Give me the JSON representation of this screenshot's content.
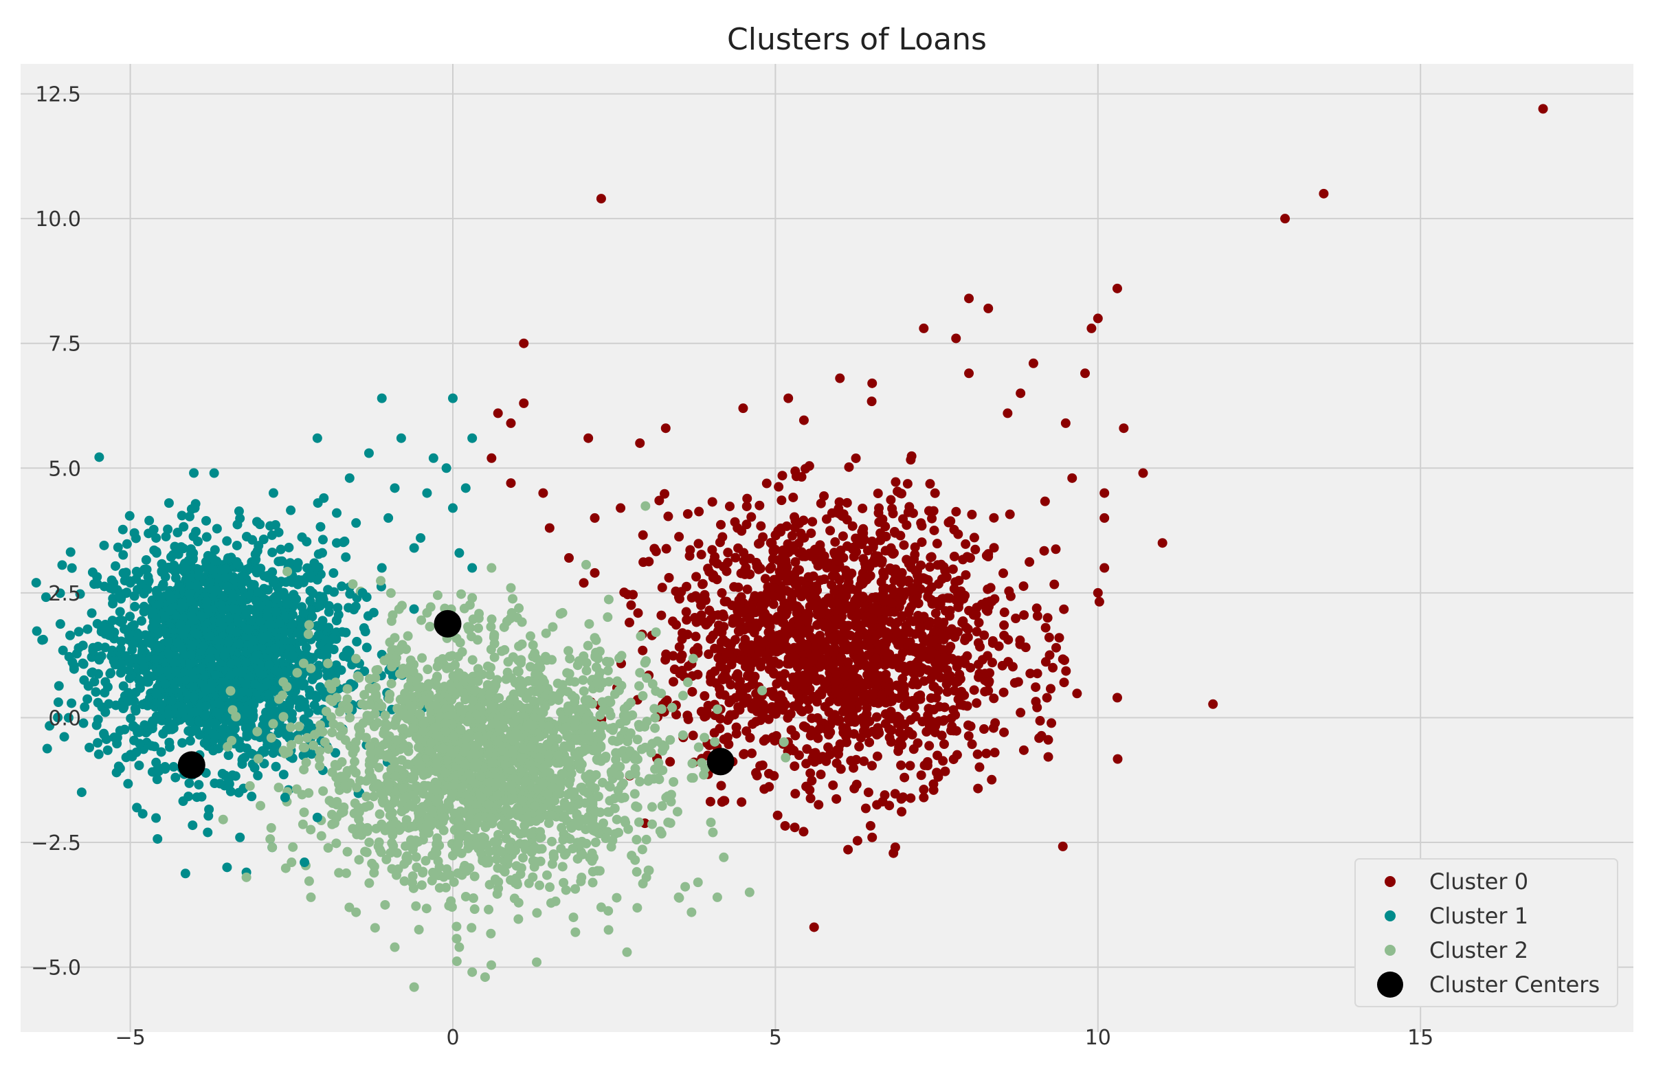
{
  "chart_data": {
    "type": "scatter",
    "title": "Clusters of Loans",
    "xlabel": "",
    "ylabel": "",
    "xlim": [
      -6.7,
      18.3
    ],
    "ylim": [
      -6.3,
      13.1
    ],
    "x_ticks": [
      -5,
      0,
      5,
      10,
      15
    ],
    "x_tick_labels": [
      "−5",
      "0",
      "5",
      "10",
      "15"
    ],
    "y_ticks": [
      -5.0,
      -2.5,
      0.0,
      2.5,
      5.0,
      7.5,
      10.0,
      12.5
    ],
    "y_tick_labels": [
      "−5.0",
      "−2.5",
      "0.0",
      "2.5",
      "5.0",
      "7.5",
      "10.0",
      "12.5"
    ],
    "grid": true,
    "legend_position": "bottom-right",
    "series": [
      {
        "name": "Cluster 0",
        "color": "#8b0000",
        "center": [
          6.0,
          1.5
        ],
        "spread": [
          1.35,
          1.35
        ],
        "points": [
          [
            16.9,
            12.2
          ],
          [
            13.5,
            10.5
          ],
          [
            12.9,
            10.0
          ],
          [
            2.3,
            10.4
          ],
          [
            10.3,
            8.6
          ],
          [
            10.0,
            8.0
          ],
          [
            9.9,
            7.8
          ],
          [
            1.1,
            7.5
          ],
          [
            8.0,
            8.4
          ],
          [
            8.3,
            8.2
          ],
          [
            7.3,
            7.8
          ],
          [
            7.8,
            7.6
          ],
          [
            10.4,
            5.8
          ],
          [
            10.7,
            4.9
          ],
          [
            11.0,
            3.5
          ],
          [
            10.1,
            3.0
          ],
          [
            10.0,
            2.5
          ],
          [
            10.3,
            0.4
          ],
          [
            8.4,
            -0.7
          ],
          [
            5.6,
            -4.2
          ],
          [
            6.5,
            -2.4
          ],
          [
            0.7,
            6.1
          ],
          [
            2.1,
            5.6
          ],
          [
            0.9,
            5.9
          ],
          [
            1.1,
            6.3
          ],
          [
            3.3,
            5.8
          ],
          [
            2.2,
            4.0
          ],
          [
            1.4,
            4.5
          ],
          [
            0.6,
            5.2
          ],
          [
            0.9,
            4.7
          ],
          [
            2.9,
            5.5
          ],
          [
            9.3,
            1.0
          ],
          [
            8.8,
            0.1
          ],
          [
            9.4,
            1.6
          ],
          [
            10.1,
            4.5
          ],
          [
            9.6,
            4.8
          ],
          [
            9.8,
            6.9
          ],
          [
            8.6,
            6.1
          ],
          [
            7.0,
            -1.2
          ],
          [
            7.5,
            -1.1
          ],
          [
            7.3,
            -1.6
          ],
          [
            5.3,
            -2.2
          ],
          [
            1.8,
            3.2
          ],
          [
            2.6,
            4.2
          ],
          [
            1.5,
            3.8
          ],
          [
            2.2,
            2.9
          ],
          [
            9.0,
            7.1
          ],
          [
            8.8,
            6.5
          ],
          [
            8.0,
            6.9
          ],
          [
            9.5,
            5.9
          ],
          [
            4.5,
            6.2
          ],
          [
            5.2,
            6.4
          ],
          [
            6.0,
            6.8
          ],
          [
            6.5,
            6.7
          ],
          [
            10.1,
            4.0
          ]
        ]
      },
      {
        "name": "Cluster 1",
        "color": "#008b8b",
        "center": [
          -3.6,
          1.3
        ],
        "spread": [
          0.95,
          1.1
        ],
        "points": [
          [
            -1.1,
            6.4
          ],
          [
            0.0,
            6.4
          ],
          [
            -2.1,
            5.6
          ],
          [
            -1.3,
            5.3
          ],
          [
            -0.8,
            5.6
          ],
          [
            -0.3,
            5.2
          ],
          [
            0.3,
            5.6
          ],
          [
            -0.1,
            5.0
          ],
          [
            -3.7,
            4.9
          ],
          [
            -4.4,
            4.3
          ],
          [
            -4.0,
            4.2
          ],
          [
            -1.6,
            4.8
          ],
          [
            -0.4,
            4.5
          ],
          [
            0.2,
            4.6
          ],
          [
            -2.0,
            4.4
          ],
          [
            -1.0,
            4.0
          ],
          [
            0.1,
            3.3
          ],
          [
            0.3,
            3.0
          ],
          [
            -0.5,
            3.6
          ],
          [
            -2.4,
            3.1
          ],
          [
            -1.8,
            3.5
          ],
          [
            -3.5,
            -3.0
          ],
          [
            -3.2,
            -3.1
          ],
          [
            -3.8,
            -2.3
          ],
          [
            -2.8,
            -2.6
          ],
          [
            -2.3,
            -2.9
          ],
          [
            -3.3,
            -2.4
          ],
          [
            -4.3,
            -1.2
          ],
          [
            -5.5,
            0.3
          ],
          [
            -5.6,
            0.9
          ],
          [
            -5.2,
            -0.4
          ],
          [
            -4.6,
            -0.9
          ],
          [
            -5.4,
            1.8
          ],
          [
            -5.0,
            2.7
          ],
          [
            -4.6,
            3.6
          ],
          [
            -2.6,
            -1.6
          ],
          [
            -2.1,
            -2.0
          ],
          [
            -1.5,
            3.9
          ],
          [
            -0.6,
            3.4
          ],
          [
            -1.1,
            3.0
          ],
          [
            -2.2,
            2.8
          ],
          [
            -1.4,
            2.5
          ],
          [
            -0.9,
            4.6
          ],
          [
            0.0,
            4.2
          ],
          [
            -1.8,
            4.1
          ]
        ]
      },
      {
        "name": "Cluster 2",
        "color": "#8fbc8f",
        "center": [
          0.5,
          -0.9
        ],
        "spread": [
          1.3,
          1.2
        ],
        "points": [
          [
            -0.6,
            -5.4
          ],
          [
            0.3,
            -5.1
          ],
          [
            0.5,
            -5.2
          ],
          [
            1.3,
            -4.9
          ],
          [
            0.1,
            -4.6
          ],
          [
            -0.9,
            -4.6
          ],
          [
            2.7,
            -4.7
          ],
          [
            1.9,
            -4.3
          ],
          [
            3.7,
            -3.9
          ],
          [
            3.5,
            -3.6
          ],
          [
            4.1,
            -3.6
          ],
          [
            4.6,
            -3.5
          ],
          [
            3.8,
            -3.3
          ],
          [
            -3.2,
            -3.2
          ],
          [
            -2.8,
            -2.6
          ],
          [
            -2.5,
            -2.9
          ],
          [
            -1.8,
            -2.0
          ],
          [
            -1.2,
            0.8
          ],
          [
            -0.9,
            1.6
          ],
          [
            -0.4,
            2.1
          ],
          [
            0.6,
            3.0
          ],
          [
            0.9,
            2.6
          ],
          [
            0.3,
            2.4
          ],
          [
            1.7,
            2.1
          ],
          [
            2.2,
            1.6
          ],
          [
            2.9,
            0.9
          ],
          [
            3.4,
            0.2
          ],
          [
            3.9,
            -0.4
          ],
          [
            -1.8,
            0.4
          ],
          [
            -2.3,
            -0.6
          ],
          [
            -2.7,
            -1.4
          ],
          [
            -2.2,
            -3.6
          ],
          [
            -1.5,
            -3.9
          ],
          [
            2.3,
            -3.8
          ],
          [
            3.0,
            -3.2
          ],
          [
            4.2,
            -2.8
          ],
          [
            4.0,
            -2.1
          ]
        ]
      }
    ],
    "centers": {
      "name": "Cluster Centers",
      "color": "#000000",
      "points": [
        [
          -4.05,
          -0.95
        ],
        [
          -0.08,
          1.88
        ],
        [
          4.15,
          -0.88
        ]
      ]
    }
  }
}
